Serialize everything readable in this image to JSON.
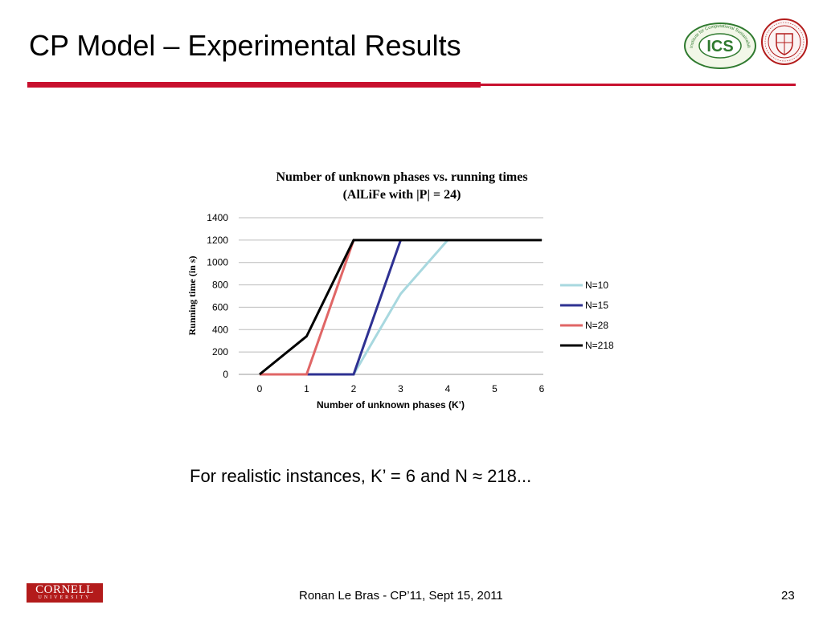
{
  "slide": {
    "title": "CP Model – Experimental Results",
    "caption": "For realistic instances, K’ = 6 and N ≈ 218...",
    "footer": "Ronan Le Bras - CP’11, Sept 15, 2011",
    "page_number": "23",
    "accent_color": "#c8102e"
  },
  "logos": {
    "ics": {
      "text": "ICS",
      "ring_text": "Institute for Computational Sustainability"
    },
    "cornell_seal": {
      "icon": "cornell-seal-icon"
    },
    "cornell": {
      "name": "CORNELL",
      "sub": "UNIVERSITY",
      "color": "#b31b1b"
    }
  },
  "chart_data": {
    "type": "line",
    "title": "Number of unknown phases vs. running times",
    "subtitle": "(AlLiFe with |P| = 24)",
    "xlabel": "Number of unknown phases (K’)",
    "ylabel": "Running time (in s)",
    "xlim": [
      0,
      6
    ],
    "ylim": [
      0,
      1400
    ],
    "x_ticks": [
      "0",
      "1",
      "2",
      "3",
      "4",
      "5",
      "6"
    ],
    "y_ticks": [
      "0",
      "200",
      "400",
      "600",
      "800",
      "1000",
      "1200",
      "1400"
    ],
    "grid": true,
    "legend_position": "right",
    "series": [
      {
        "name": "N=10",
        "color": "#a8d8df",
        "x": [
          0,
          1,
          2,
          3,
          4
        ],
        "y": [
          0,
          0,
          0,
          720,
          1200
        ]
      },
      {
        "name": "N=15",
        "color": "#2e3192",
        "x": [
          0,
          1,
          2,
          3
        ],
        "y": [
          0,
          0,
          0,
          1200
        ]
      },
      {
        "name": "N=28",
        "color": "#e06666",
        "x": [
          0,
          1,
          2
        ],
        "y": [
          0,
          0,
          1200
        ]
      },
      {
        "name": "N=218",
        "color": "#000000",
        "x": [
          0,
          1,
          2,
          3,
          4,
          5,
          6
        ],
        "y": [
          0,
          340,
          1200,
          1200,
          1200,
          1200,
          1200
        ]
      }
    ]
  }
}
